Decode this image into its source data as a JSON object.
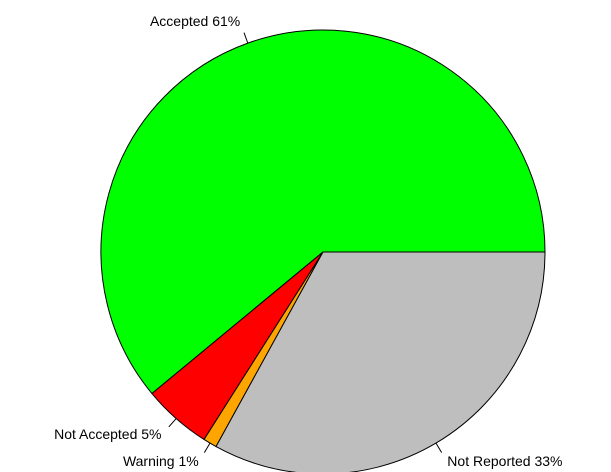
{
  "chart_data": {
    "type": "pie",
    "categories": [
      "Accepted",
      "Not Accepted",
      "Warning",
      "Not Reported"
    ],
    "values": [
      61,
      5,
      1,
      33
    ],
    "value_labels": [
      "61%",
      "5%",
      "1%",
      "33%"
    ],
    "colors": [
      "#00ff00",
      "#ff0000",
      "#ffa500",
      "#bebebe"
    ]
  }
}
